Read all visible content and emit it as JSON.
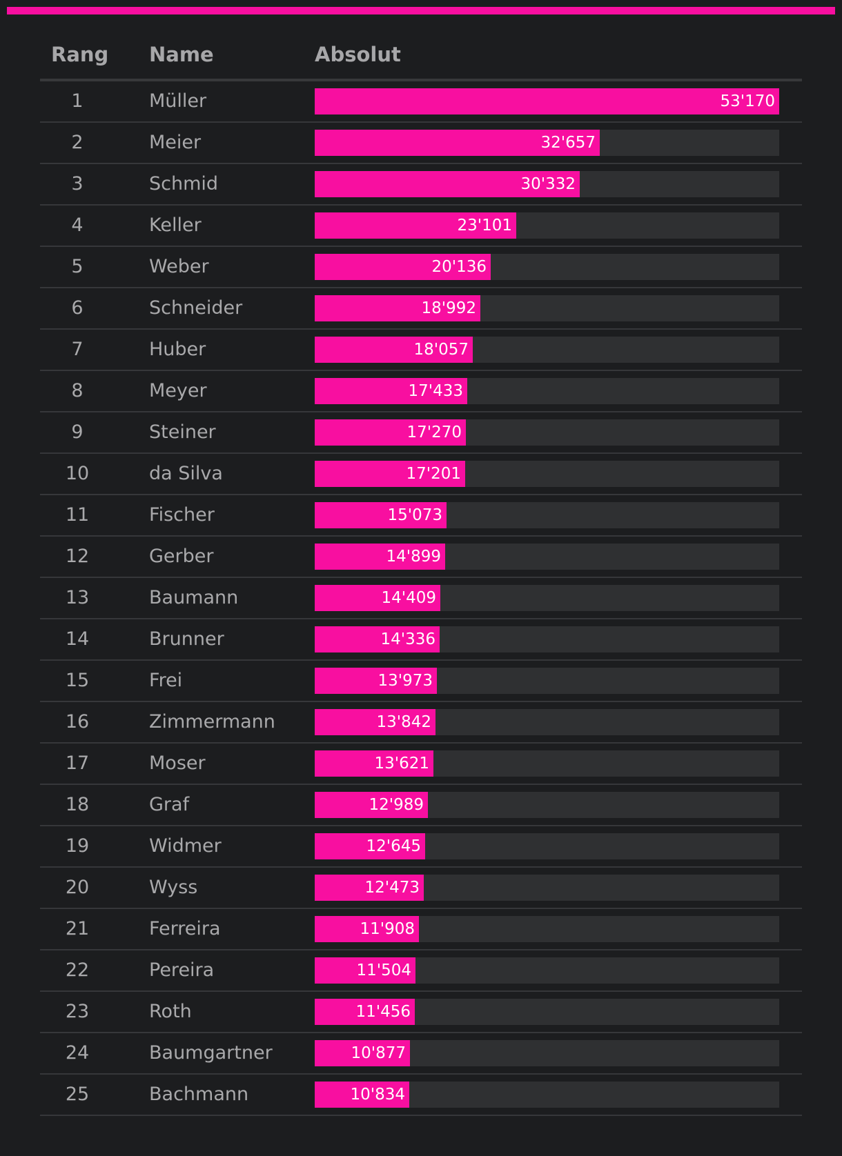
{
  "colors": {
    "accent": "#f80fa0",
    "background": "#1c1d1f",
    "track": "#2f3032",
    "text": "#a9a9ab"
  },
  "header": {
    "rang": "Rang",
    "name": "Name",
    "absolut": "Absolut"
  },
  "chart_data": {
    "type": "bar",
    "orientation": "horizontal",
    "title": "",
    "xlabel": "Absolut",
    "ylabel": "Name",
    "xlim": [
      0,
      53170
    ],
    "rows": [
      {
        "rank": "1",
        "name": "Müller",
        "value": 53170,
        "label": "53'170"
      },
      {
        "rank": "2",
        "name": "Meier",
        "value": 32657,
        "label": "32'657"
      },
      {
        "rank": "3",
        "name": "Schmid",
        "value": 30332,
        "label": "30'332"
      },
      {
        "rank": "4",
        "name": "Keller",
        "value": 23101,
        "label": "23'101"
      },
      {
        "rank": "5",
        "name": "Weber",
        "value": 20136,
        "label": "20'136"
      },
      {
        "rank": "6",
        "name": "Schneider",
        "value": 18992,
        "label": "18'992"
      },
      {
        "rank": "7",
        "name": "Huber",
        "value": 18057,
        "label": "18'057"
      },
      {
        "rank": "8",
        "name": "Meyer",
        "value": 17433,
        "label": "17'433"
      },
      {
        "rank": "9",
        "name": "Steiner",
        "value": 17270,
        "label": "17'270"
      },
      {
        "rank": "10",
        "name": "da Silva",
        "value": 17201,
        "label": "17'201"
      },
      {
        "rank": "11",
        "name": "Fischer",
        "value": 15073,
        "label": "15'073"
      },
      {
        "rank": "12",
        "name": "Gerber",
        "value": 14899,
        "label": "14'899"
      },
      {
        "rank": "13",
        "name": "Baumann",
        "value": 14409,
        "label": "14'409"
      },
      {
        "rank": "14",
        "name": "Brunner",
        "value": 14336,
        "label": "14'336"
      },
      {
        "rank": "15",
        "name": "Frei",
        "value": 13973,
        "label": "13'973"
      },
      {
        "rank": "16",
        "name": "Zimmermann",
        "value": 13842,
        "label": "13'842"
      },
      {
        "rank": "17",
        "name": "Moser",
        "value": 13621,
        "label": "13'621"
      },
      {
        "rank": "18",
        "name": "Graf",
        "value": 12989,
        "label": "12'989"
      },
      {
        "rank": "19",
        "name": "Widmer",
        "value": 12645,
        "label": "12'645"
      },
      {
        "rank": "20",
        "name": "Wyss",
        "value": 12473,
        "label": "12'473"
      },
      {
        "rank": "21",
        "name": "Ferreira",
        "value": 11908,
        "label": "11'908"
      },
      {
        "rank": "22",
        "name": "Pereira",
        "value": 11504,
        "label": "11'504"
      },
      {
        "rank": "23",
        "name": "Roth",
        "value": 11456,
        "label": "11'456"
      },
      {
        "rank": "24",
        "name": "Baumgartner",
        "value": 10877,
        "label": "10'877"
      },
      {
        "rank": "25",
        "name": "Bachmann",
        "value": 10834,
        "label": "10'834"
      }
    ]
  }
}
